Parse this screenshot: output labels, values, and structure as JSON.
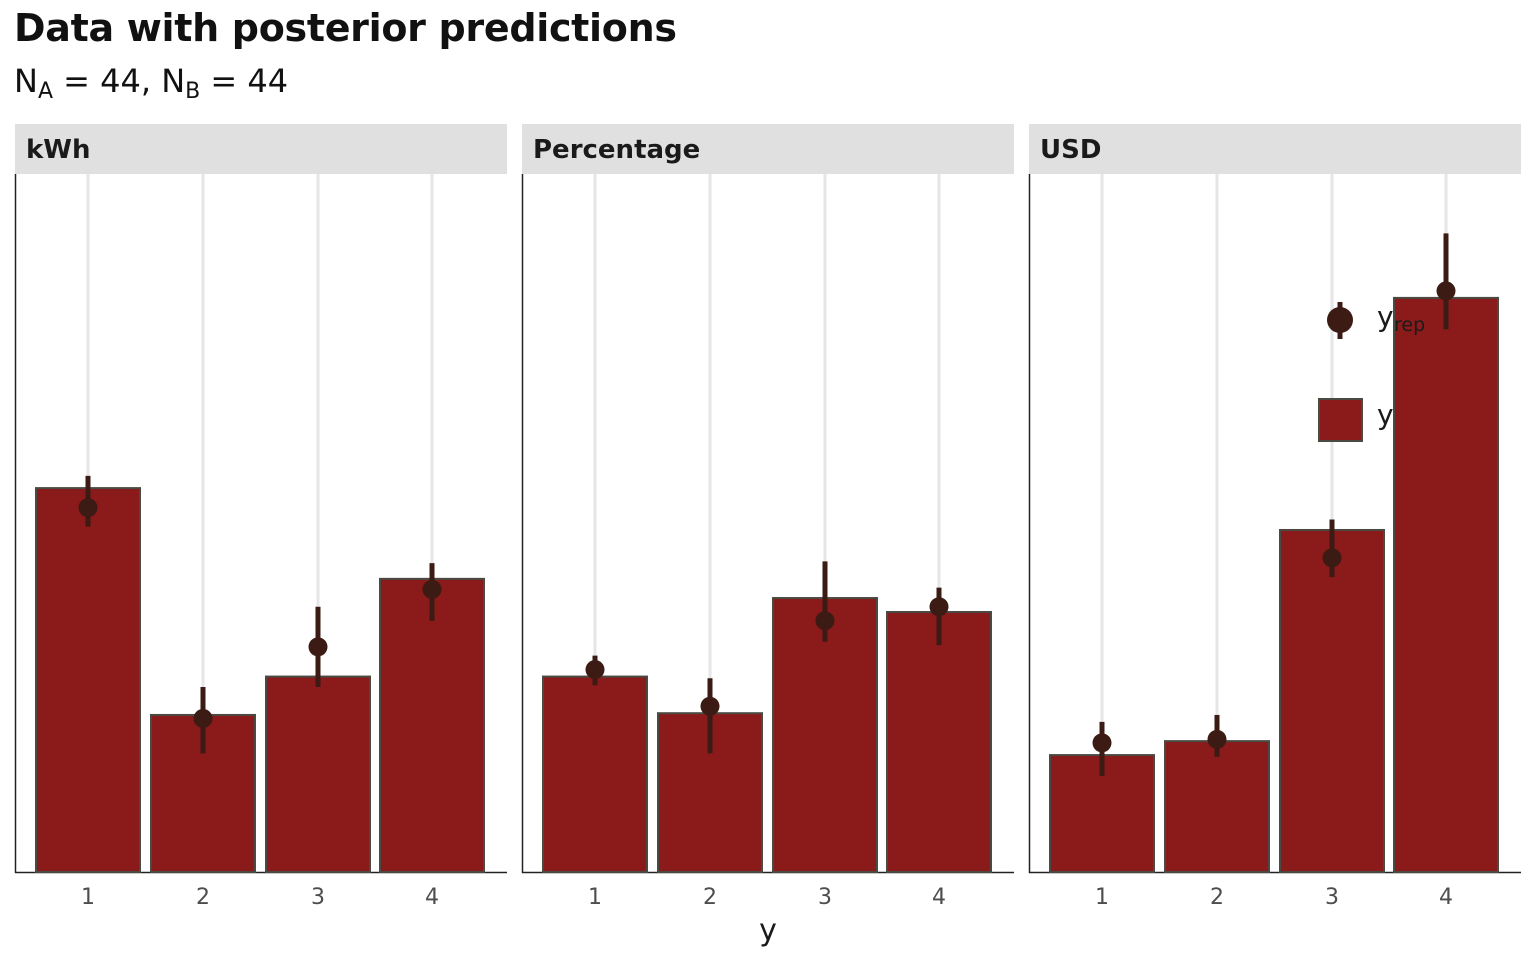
{
  "title": "Data with posterior predictions",
  "subtitle": {
    "n_a_label": "N",
    "n_a_sub": "A",
    "n_a_value": "= 44,",
    "n_b_label": "N",
    "n_b_sub": "B",
    "n_b_value": "= 44"
  },
  "colors": {
    "bar_fill": "#8b1a1a",
    "bar_stroke": "#4a4a42",
    "point": "#3b1b14",
    "strip": "#e0e0e0",
    "grid": "#e6e6e6"
  },
  "chart_data": {
    "type": "bar",
    "categories": [
      "1",
      "2",
      "3",
      "4"
    ],
    "xlabel": "y",
    "ylabel": "",
    "ylim": [
      0,
      20
    ],
    "grid": "vertical major lines only",
    "legend": {
      "placement": "top-right inside last panel",
      "entries": [
        {
          "symbol": "point-interval",
          "label_main": "y",
          "label_sub": "rep"
        },
        {
          "symbol": "bar",
          "label_main": "y",
          "label_sub": ""
        }
      ]
    },
    "facets": [
      {
        "label": "kWh",
        "y": [
          11,
          4.5,
          5.6,
          8.4
        ],
        "yrep": {
          "mid": [
            10.44,
            4.4,
            6.45,
            8.1
          ],
          "low": [
            9.9,
            3.4,
            5.3,
            7.2
          ],
          "high": [
            11.35,
            5.3,
            7.6,
            8.85
          ]
        }
      },
      {
        "label": "Percentage",
        "y": [
          5.6,
          4.55,
          7.85,
          7.45
        ],
        "yrep": {
          "mid": [
            5.8,
            4.75,
            7.2,
            7.6
          ],
          "low": [
            5.35,
            3.4,
            6.6,
            6.5
          ],
          "high": [
            6.2,
            5.55,
            8.9,
            8.15
          ]
        }
      },
      {
        "label": "USD",
        "y": [
          3.35,
          3.75,
          9.8,
          16.45
        ],
        "yrep": {
          "mid": [
            3.7,
            3.8,
            9.0,
            16.65
          ],
          "low": [
            2.75,
            3.3,
            8.45,
            15.55
          ],
          "high": [
            4.3,
            4.5,
            10.1,
            18.3
          ]
        }
      }
    ]
  }
}
